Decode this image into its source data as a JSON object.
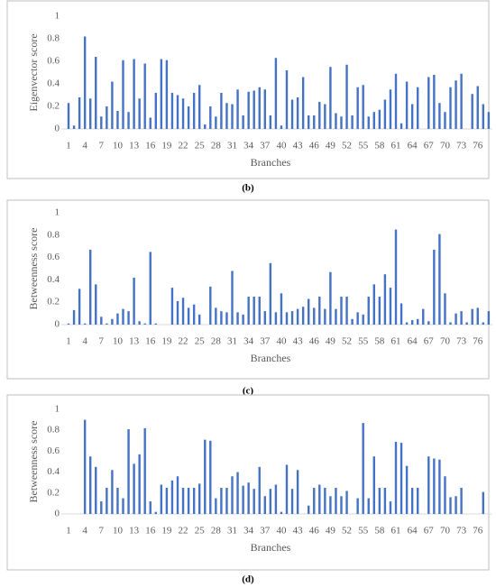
{
  "chart_data": [
    {
      "type": "bar",
      "label": "(b)",
      "y_label": "Eigenvector score",
      "x_label": "Branches",
      "color": "#4472c4",
      "categories": [
        "1",
        null,
        null,
        "4",
        null,
        null,
        "7",
        null,
        null,
        "10",
        null,
        null,
        "13",
        null,
        null,
        "16",
        null,
        null,
        "19",
        null,
        null,
        "22",
        null,
        null,
        "25",
        null,
        null,
        "28",
        null,
        null,
        "31",
        null,
        null,
        "34",
        null,
        null,
        "37",
        null,
        null,
        "40",
        null,
        null,
        "43",
        null,
        null,
        "46",
        null,
        null,
        "49",
        null,
        null,
        "52",
        null,
        null,
        "55",
        null,
        null,
        "58",
        null,
        null,
        "61",
        null,
        null,
        "64",
        null,
        null,
        "67",
        null,
        null,
        "70",
        null,
        null,
        "73",
        null,
        null,
        "76",
        null,
        null
      ],
      "values": [
        0.23,
        0.03,
        0.28,
        0.82,
        0.27,
        0.64,
        0.11,
        0.2,
        0.42,
        0.16,
        0.61,
        0.15,
        0.62,
        0.27,
        0.58,
        0.1,
        0.32,
        0.62,
        0.61,
        0.32,
        0.3,
        0.27,
        0.2,
        0.32,
        0.39,
        0.04,
        0.2,
        0.11,
        0.32,
        0.23,
        0.22,
        0.35,
        0.12,
        0.33,
        0.34,
        0.37,
        0.35,
        0.12,
        0.63,
        0.03,
        0.52,
        0.26,
        0.28,
        0.46,
        0.12,
        0.12,
        0.24,
        0.22,
        0.55,
        0.14,
        0.11,
        0.57,
        0.12,
        0.37,
        0.39,
        0.11,
        0.15,
        0.17,
        0.26,
        0.35,
        0.49,
        0.05,
        0.42,
        0.22,
        0.37,
        0,
        0.46,
        0.48,
        0.23,
        0.15,
        0.37,
        0.43,
        0.49,
        0,
        0.31,
        0.38,
        0.22,
        0.15
      ],
      "ylim": [
        0,
        1
      ],
      "yticks": [
        0,
        0.2,
        0.4,
        0.6,
        0.8,
        1
      ]
    },
    {
      "type": "bar",
      "label": "(c)",
      "y_label": "Betweenness score",
      "x_label": "Branches",
      "color": "#4472c4",
      "categories": [
        "1",
        null,
        null,
        "4",
        null,
        null,
        "7",
        null,
        null,
        "10",
        null,
        null,
        "13",
        null,
        null,
        "16",
        null,
        null,
        "19",
        null,
        null,
        "22",
        null,
        null,
        "25",
        null,
        null,
        "28",
        null,
        null,
        "31",
        null,
        null,
        "34",
        null,
        null,
        "37",
        null,
        null,
        "40",
        null,
        null,
        "43",
        null,
        null,
        "46",
        null,
        null,
        "49",
        null,
        null,
        "52",
        null,
        null,
        "55",
        null,
        null,
        "58",
        null,
        null,
        "61",
        null,
        null,
        "64",
        null,
        null,
        "67",
        null,
        null,
        "70",
        null,
        null,
        "73",
        null,
        null,
        "76",
        null,
        null
      ],
      "values": [
        0.01,
        0.13,
        0.32,
        0.01,
        0.67,
        0.36,
        0.07,
        0.01,
        0.05,
        0.1,
        0.14,
        0.12,
        0.42,
        0.03,
        0.01,
        0.65,
        0.01,
        0,
        0,
        0.33,
        0.21,
        0.24,
        0.15,
        0.18,
        0.09,
        0,
        0.34,
        0.15,
        0.12,
        0.11,
        0.48,
        0.11,
        0.09,
        0.25,
        0.25,
        0.25,
        0.12,
        0.55,
        0.11,
        0.28,
        0.11,
        0.12,
        0.14,
        0.16,
        0.23,
        0.15,
        0.25,
        0.14,
        0.47,
        0.14,
        0.25,
        0.25,
        0.05,
        0.11,
        0.09,
        0.25,
        0.36,
        0.25,
        0.45,
        0.33,
        0.85,
        0.19,
        0.02,
        0.04,
        0.05,
        0.14,
        0.03,
        0.67,
        0.81,
        0.28,
        0.02,
        0.1,
        0.12,
        0.02,
        0.14,
        0.15,
        0.02,
        0.12
      ],
      "ylim": [
        0,
        1
      ],
      "yticks": [
        0,
        0.2,
        0.4,
        0.6,
        0.8,
        1
      ]
    },
    {
      "type": "bar",
      "label": "(d)",
      "y_label": "Betweenness score",
      "x_label": "Branches",
      "color": "#4472c4",
      "categories": [
        "1",
        null,
        null,
        "4",
        null,
        null,
        "7",
        null,
        null,
        "10",
        null,
        null,
        "13",
        null,
        null,
        "16",
        null,
        null,
        "19",
        null,
        null,
        "22",
        null,
        null,
        "25",
        null,
        null,
        "28",
        null,
        null,
        "31",
        null,
        null,
        "34",
        null,
        null,
        "37",
        null,
        null,
        "40",
        null,
        null,
        "43",
        null,
        null,
        "46",
        null,
        null,
        "49",
        null,
        null,
        "52",
        null,
        null,
        "55",
        null,
        null,
        "58",
        null,
        null,
        "61",
        null,
        null,
        "64",
        null,
        null,
        "67",
        null,
        null,
        "70",
        null,
        null,
        "73",
        null,
        null,
        "76",
        null,
        null
      ],
      "values": [
        0,
        0,
        0,
        0.9,
        0.55,
        0.45,
        0.12,
        0.25,
        0.42,
        0.25,
        0.15,
        0.81,
        0.48,
        0.57,
        0.82,
        0.12,
        0.02,
        0.28,
        0.25,
        0.32,
        0.36,
        0.25,
        0.25,
        0.25,
        0.29,
        0.71,
        0.7,
        0.15,
        0.25,
        0.25,
        0.36,
        0.4,
        0.27,
        0.3,
        0.24,
        0.45,
        0.17,
        0.24,
        0.28,
        0.02,
        0.47,
        0.24,
        0.42,
        0,
        0.08,
        0.25,
        0.28,
        0.25,
        0.17,
        0.25,
        0.17,
        0.22,
        0,
        0.15,
        0.87,
        0.15,
        0.55,
        0.25,
        0.25,
        0.12,
        0.69,
        0.68,
        0.46,
        0.25,
        0.25,
        0,
        0.55,
        0.53,
        0.52,
        0.36,
        0.16,
        0.17,
        0.25,
        0,
        0,
        0,
        0.21,
        0
      ],
      "ylim": [
        0,
        1
      ],
      "yticks": [
        0,
        0.2,
        0.4,
        0.6,
        0.8,
        1
      ]
    }
  ]
}
